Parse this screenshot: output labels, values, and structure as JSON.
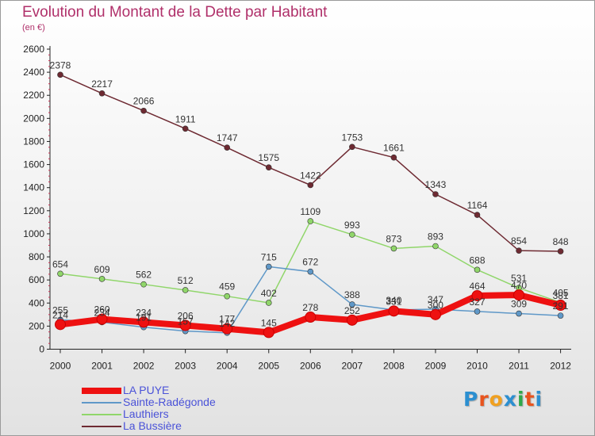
{
  "title": "Evolution du Montant de la Dette par Habitant",
  "subtitle": "(en €)",
  "logo": {
    "letters": [
      "P",
      "r",
      "o",
      "x",
      "i",
      "t",
      "i"
    ],
    "colors": [
      "#2c8fd0",
      "#e8541e",
      "#f0a020",
      "#2c8fd0",
      "#2fa84a",
      "#e8541e",
      "#2c8fd0"
    ]
  },
  "chart_data": {
    "type": "line",
    "title": "Evolution du Montant de la Dette par Habitant",
    "ylabel": "(en €)",
    "xlabel": "",
    "x": [
      "2000",
      "2001",
      "2002",
      "2003",
      "2004",
      "2005",
      "2006",
      "2007",
      "2008",
      "2009",
      "2010",
      "2011",
      "2012"
    ],
    "ylim": [
      0,
      2600
    ],
    "yticks": [
      0,
      200,
      400,
      600,
      800,
      1000,
      1200,
      1400,
      1600,
      1800,
      2000,
      2200,
      2400,
      2600
    ],
    "grid": false,
    "legend_position": "bottom-left",
    "series": [
      {
        "name": "La Bussière",
        "color": "#6e2a32",
        "emphasis": false,
        "values": [
          2378,
          2217,
          2066,
          1911,
          1747,
          1575,
          1422,
          1753,
          1661,
          1343,
          1164,
          854,
          848
        ],
        "labels": [
          "2378",
          "2217",
          "2066",
          "1911",
          "1747",
          "1575",
          "1422",
          "1753",
          "1661",
          "1343",
          "1164",
          "854",
          "848"
        ]
      },
      {
        "name": "Lauthiers",
        "color": "#90d66a",
        "emphasis": false,
        "values": [
          654,
          609,
          562,
          512,
          459,
          402,
          1109,
          993,
          873,
          893,
          688,
          531,
          405
        ],
        "labels": [
          "654",
          "609",
          "562",
          "512",
          "459",
          "402",
          "1109",
          "993",
          "873",
          "893",
          "688",
          "531",
          "405"
        ]
      },
      {
        "name": "Sainte-Radégonde",
        "color": "#5f98c8",
        "emphasis": false,
        "values": [
          255,
          234,
          191,
          157,
          142,
          715,
          672,
          388,
          340,
          347,
          327,
          309,
          291
        ],
        "labels": [
          "255",
          "234",
          "191",
          "157",
          "142",
          "715",
          "672",
          "388",
          "340",
          "347",
          "327",
          "309",
          "291"
        ]
      },
      {
        "name": "LA PUYE",
        "color": "#ee1111",
        "emphasis": true,
        "values": [
          214,
          260,
          234,
          206,
          177,
          145,
          278,
          252,
          331,
          300,
          464,
          470,
          381
        ],
        "labels": [
          "214",
          "260",
          "234",
          "206",
          "177",
          "145",
          "278",
          "252",
          "331",
          "300",
          "464",
          "470",
          "381"
        ]
      }
    ],
    "legend_order": [
      "LA PUYE",
      "Sainte-Radégonde",
      "Lauthiers",
      "La Bussière"
    ]
  }
}
